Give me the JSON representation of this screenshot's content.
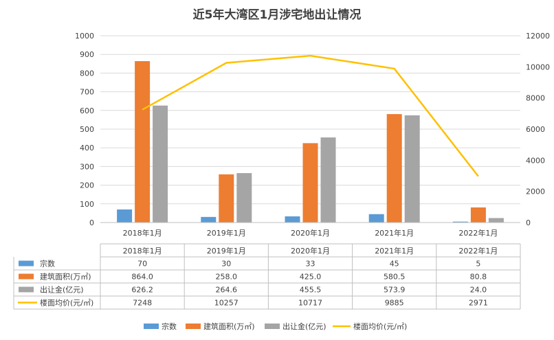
{
  "chart_data": {
    "type": "bar+line",
    "title": "近5年大湾区1月涉宅地出让情况",
    "categories": [
      "2018年1月",
      "2019年1月",
      "2020年1月",
      "2021年1月",
      "2022年1月"
    ],
    "series": [
      {
        "name": "宗数",
        "type": "bar",
        "axis": "left",
        "color": "#5B9BD5",
        "values": [
          70,
          30,
          33,
          45,
          5
        ],
        "labels": [
          "70",
          "30",
          "33",
          "45",
          "5"
        ]
      },
      {
        "name": "建筑面积(万㎡)",
        "type": "bar",
        "axis": "left",
        "color": "#ED7D31",
        "values": [
          864.0,
          258.0,
          425.0,
          580.5,
          80.8
        ],
        "labels": [
          "864.0",
          "258.0",
          "425.0",
          "580.5",
          "80.8"
        ]
      },
      {
        "name": "出让金(亿元)",
        "type": "bar",
        "axis": "left",
        "color": "#A5A5A5",
        "values": [
          626.2,
          264.6,
          455.5,
          573.9,
          24.0
        ],
        "labels": [
          "626.2",
          "264.6",
          "455.5",
          "573.9",
          "24.0"
        ]
      },
      {
        "name": "楼面均价(元/㎡)",
        "type": "line",
        "axis": "right",
        "color": "#FFC000",
        "values": [
          7248,
          10257,
          10717,
          9885,
          2971
        ],
        "labels": [
          "7248",
          "10257",
          "10717",
          "9885",
          "2971"
        ]
      }
    ],
    "y_left": {
      "min": 0,
      "max": 1000,
      "ticks": [
        "0",
        "100",
        "200",
        "300",
        "400",
        "500",
        "600",
        "700",
        "800",
        "900",
        "1000"
      ]
    },
    "y_right": {
      "min": 0,
      "max": 12000,
      "ticks": [
        "0",
        "2000",
        "4000",
        "6000",
        "8000",
        "10000",
        "12000"
      ]
    },
    "grid": true,
    "legend": "bottom",
    "data_table": true
  }
}
